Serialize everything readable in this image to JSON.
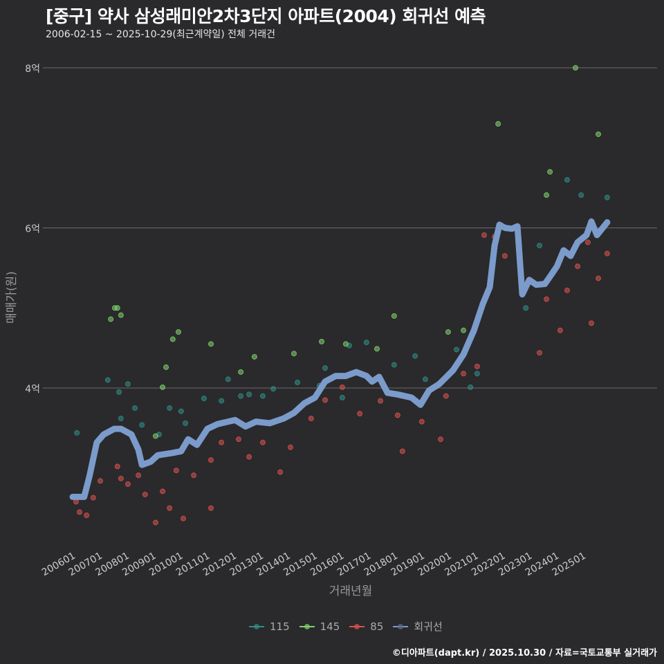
{
  "title": "[중구] 약사 삼성래미안2차3단지 아파트(2004) 회귀선 예측",
  "subtitle": "2006-02-15 ~ 2025-10-29(최근계약일) 전체 거래건",
  "footer": "©디아파트(dapt.kr) / 2025.10.30 / 자료=국토교통부 실거래가",
  "colors": {
    "115": "#2f8f86",
    "145": "#7fd36b",
    "85": "#d9534f",
    "line": "#7b9bcb",
    "grid": "#6a6a6a",
    "bg": "#2a292c"
  },
  "chart_data": {
    "type": "scatter",
    "title": "[중구] 약사 삼성래미안2차3단지 아파트(2004) 회귀선 예측",
    "xlabel": "거래년월",
    "ylabel": "매매가(원)",
    "xlim": [
      2005.88,
      2026.2
    ],
    "ylim": [
      2.02,
      8.1
    ],
    "x_ticks": [
      {
        "v": 2006,
        "label": "200601"
      },
      {
        "v": 2007,
        "label": "200701"
      },
      {
        "v": 2008,
        "label": "200801"
      },
      {
        "v": 2009,
        "label": "200901"
      },
      {
        "v": 2010,
        "label": "201001"
      },
      {
        "v": 2011,
        "label": "201101"
      },
      {
        "v": 2012,
        "label": "201201"
      },
      {
        "v": 2013,
        "label": "201301"
      },
      {
        "v": 2014,
        "label": "201401"
      },
      {
        "v": 2015,
        "label": "201501"
      },
      {
        "v": 2016,
        "label": "201601"
      },
      {
        "v": 2017,
        "label": "201701"
      },
      {
        "v": 2018,
        "label": "201801"
      },
      {
        "v": 2019,
        "label": "201901"
      },
      {
        "v": 2020,
        "label": "202001"
      },
      {
        "v": 2021,
        "label": "202101"
      },
      {
        "v": 2022,
        "label": "202201"
      },
      {
        "v": 2023,
        "label": "202301"
      },
      {
        "v": 2024,
        "label": "202401"
      },
      {
        "v": 2025,
        "label": "202501"
      }
    ],
    "y_ticks": [
      {
        "v": 4,
        "label": "4억"
      },
      {
        "v": 6,
        "label": "6억"
      },
      {
        "v": 8,
        "label": "8억"
      }
    ],
    "grid": true,
    "legend_position": "bottom",
    "legend": [
      "115",
      "145",
      "85",
      "회귀선"
    ],
    "series": [
      {
        "name": "115",
        "kind": "points",
        "points": [
          [
            2006.03,
            3.44
          ],
          [
            2007.18,
            4.1
          ],
          [
            2007.6,
            3.95
          ],
          [
            2007.67,
            3.62
          ],
          [
            2007.93,
            4.05
          ],
          [
            2008.19,
            3.75
          ],
          [
            2008.45,
            3.54
          ],
          [
            2009.09,
            3.42
          ],
          [
            2009.48,
            3.75
          ],
          [
            2009.91,
            3.71
          ],
          [
            2010.07,
            3.56
          ],
          [
            2010.76,
            3.87
          ],
          [
            2011.41,
            3.84
          ],
          [
            2011.66,
            4.11
          ],
          [
            2012.13,
            3.9
          ],
          [
            2012.44,
            3.92
          ],
          [
            2012.95,
            3.9
          ],
          [
            2013.34,
            3.99
          ],
          [
            2014.24,
            4.07
          ],
          [
            2015.06,
            4.03
          ],
          [
            2015.27,
            4.25
          ],
          [
            2015.91,
            3.88
          ],
          [
            2016.17,
            4.53
          ],
          [
            2016.81,
            4.57
          ],
          [
            2017.84,
            4.29
          ],
          [
            2018.62,
            4.4
          ],
          [
            2019.0,
            4.11
          ],
          [
            2020.16,
            4.48
          ],
          [
            2020.68,
            4.01
          ],
          [
            2020.93,
            4.18
          ],
          [
            2022.74,
            5.0
          ],
          [
            2023.25,
            5.78
          ],
          [
            2024.28,
            6.6
          ],
          [
            2024.8,
            6.41
          ],
          [
            2025.77,
            6.38
          ]
        ]
      },
      {
        "name": "145",
        "kind": "points",
        "points": [
          [
            2007.29,
            4.86
          ],
          [
            2007.44,
            5.0
          ],
          [
            2007.54,
            5.0
          ],
          [
            2007.67,
            4.91
          ],
          [
            2008.96,
            3.4
          ],
          [
            2009.22,
            4.01
          ],
          [
            2009.35,
            4.26
          ],
          [
            2009.6,
            4.61
          ],
          [
            2009.81,
            4.7
          ],
          [
            2011.02,
            4.55
          ],
          [
            2012.13,
            4.2
          ],
          [
            2012.64,
            4.39
          ],
          [
            2014.11,
            4.43
          ],
          [
            2015.14,
            4.58
          ],
          [
            2016.04,
            4.55
          ],
          [
            2017.2,
            4.49
          ],
          [
            2017.84,
            4.9
          ],
          [
            2019.85,
            4.7
          ],
          [
            2020.42,
            4.72
          ],
          [
            2021.71,
            7.3
          ],
          [
            2023.51,
            6.41
          ],
          [
            2023.64,
            6.7
          ],
          [
            2024.59,
            8.0
          ],
          [
            2025.44,
            7.17
          ]
        ]
      },
      {
        "name": "85",
        "kind": "points",
        "points": [
          [
            2006.0,
            2.58
          ],
          [
            2006.13,
            2.45
          ],
          [
            2006.39,
            2.41
          ],
          [
            2006.64,
            2.63
          ],
          [
            2006.9,
            2.84
          ],
          [
            2007.54,
            3.02
          ],
          [
            2007.67,
            2.87
          ],
          [
            2007.93,
            2.8
          ],
          [
            2008.32,
            2.91
          ],
          [
            2008.57,
            2.67
          ],
          [
            2008.96,
            2.32
          ],
          [
            2009.22,
            2.71
          ],
          [
            2009.48,
            2.5
          ],
          [
            2009.73,
            2.97
          ],
          [
            2009.99,
            2.37
          ],
          [
            2010.38,
            2.91
          ],
          [
            2011.02,
            3.1
          ],
          [
            2011.02,
            2.5
          ],
          [
            2011.41,
            3.32
          ],
          [
            2012.05,
            3.36
          ],
          [
            2012.44,
            3.14
          ],
          [
            2012.95,
            3.32
          ],
          [
            2013.6,
            2.95
          ],
          [
            2013.98,
            3.26
          ],
          [
            2014.75,
            3.62
          ],
          [
            2015.27,
            3.85
          ],
          [
            2015.91,
            4.01
          ],
          [
            2016.56,
            3.68
          ],
          [
            2017.33,
            3.84
          ],
          [
            2017.97,
            3.66
          ],
          [
            2018.15,
            3.21
          ],
          [
            2018.87,
            3.58
          ],
          [
            2019.57,
            3.36
          ],
          [
            2019.77,
            3.9
          ],
          [
            2020.42,
            4.18
          ],
          [
            2020.93,
            4.27
          ],
          [
            2021.19,
            5.91
          ],
          [
            2021.58,
            5.89
          ],
          [
            2021.96,
            5.65
          ],
          [
            2023.25,
            4.44
          ],
          [
            2023.51,
            5.11
          ],
          [
            2024.02,
            4.72
          ],
          [
            2024.28,
            5.22
          ],
          [
            2024.67,
            5.52
          ],
          [
            2025.05,
            5.82
          ],
          [
            2025.18,
            4.81
          ],
          [
            2025.44,
            5.37
          ],
          [
            2025.77,
            5.68
          ]
        ]
      },
      {
        "name": "회귀선",
        "kind": "line",
        "points": [
          [
            2005.87,
            2.64
          ],
          [
            2006.3,
            2.64
          ],
          [
            2006.5,
            2.9
          ],
          [
            2006.77,
            3.32
          ],
          [
            2007.03,
            3.42
          ],
          [
            2007.42,
            3.49
          ],
          [
            2007.67,
            3.49
          ],
          [
            2008.06,
            3.42
          ],
          [
            2008.32,
            3.23
          ],
          [
            2008.45,
            3.04
          ],
          [
            2008.78,
            3.08
          ],
          [
            2009.04,
            3.16
          ],
          [
            2009.6,
            3.19
          ],
          [
            2009.91,
            3.21
          ],
          [
            2010.17,
            3.36
          ],
          [
            2010.5,
            3.29
          ],
          [
            2010.89,
            3.49
          ],
          [
            2011.27,
            3.55
          ],
          [
            2011.66,
            3.58
          ],
          [
            2011.92,
            3.6
          ],
          [
            2012.31,
            3.52
          ],
          [
            2012.7,
            3.58
          ],
          [
            2013.21,
            3.56
          ],
          [
            2013.73,
            3.62
          ],
          [
            2014.11,
            3.69
          ],
          [
            2014.5,
            3.81
          ],
          [
            2014.89,
            3.88
          ],
          [
            2015.27,
            4.08
          ],
          [
            2015.66,
            4.15
          ],
          [
            2016.04,
            4.15
          ],
          [
            2016.43,
            4.2
          ],
          [
            2016.81,
            4.15
          ],
          [
            2017.02,
            4.08
          ],
          [
            2017.28,
            4.14
          ],
          [
            2017.59,
            3.94
          ],
          [
            2017.97,
            3.92
          ],
          [
            2018.49,
            3.88
          ],
          [
            2018.82,
            3.79
          ],
          [
            2019.14,
            3.97
          ],
          [
            2019.52,
            4.05
          ],
          [
            2020.03,
            4.22
          ],
          [
            2020.42,
            4.42
          ],
          [
            2020.81,
            4.72
          ],
          [
            2021.14,
            5.05
          ],
          [
            2021.4,
            5.26
          ],
          [
            2021.58,
            5.78
          ],
          [
            2021.76,
            6.04
          ],
          [
            2021.97,
            6.0
          ],
          [
            2022.22,
            5.99
          ],
          [
            2022.43,
            6.02
          ],
          [
            2022.61,
            5.17
          ],
          [
            2022.87,
            5.35
          ],
          [
            2023.13,
            5.29
          ],
          [
            2023.45,
            5.3
          ],
          [
            2023.64,
            5.39
          ],
          [
            2023.9,
            5.52
          ],
          [
            2024.15,
            5.72
          ],
          [
            2024.41,
            5.65
          ],
          [
            2024.67,
            5.82
          ],
          [
            2025.0,
            5.91
          ],
          [
            2025.18,
            6.08
          ],
          [
            2025.39,
            5.91
          ],
          [
            2025.77,
            6.07
          ]
        ]
      }
    ]
  }
}
